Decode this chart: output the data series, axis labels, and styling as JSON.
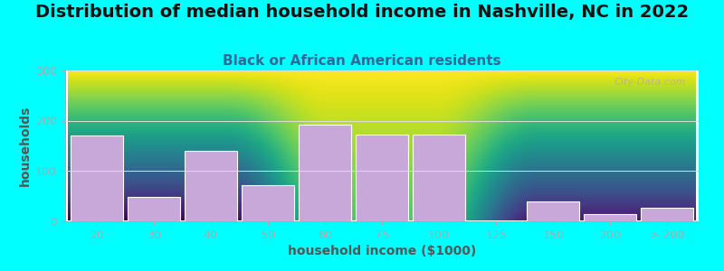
{
  "title": "Distribution of median household income in Nashville, NC in 2022",
  "subtitle": "Black or African American residents",
  "xlabel": "household income ($1000)",
  "ylabel": "households",
  "background_outer": "#00FFFF",
  "bar_color": "#C8A8D8",
  "bar_edge_color": "#FFFFFF",
  "categories": [
    "20",
    "30",
    "40",
    "50",
    "60",
    "75",
    "100",
    "125",
    "150",
    "200",
    "> 200"
  ],
  "values": [
    170,
    47,
    140,
    72,
    192,
    172,
    172,
    0,
    38,
    13,
    26
  ],
  "bar_positions": [
    0,
    1,
    2,
    3,
    4,
    5,
    6,
    7,
    8,
    9,
    10
  ],
  "ylim": [
    0,
    300
  ],
  "yticks": [
    0,
    100,
    200,
    300
  ],
  "title_fontsize": 14,
  "subtitle_fontsize": 11,
  "axis_label_fontsize": 10,
  "tick_fontsize": 9,
  "watermark_text": "City-Data.com",
  "gradient_top_color": "#F5F5F5",
  "gradient_bottom_color": "#D8EDDA",
  "title_color": "#111111",
  "subtitle_color": "#336699",
  "axis_label_color": "#555555",
  "tick_color": "#555555",
  "spine_color": "#AAAAAA",
  "grid_color": "#DDDDDD"
}
